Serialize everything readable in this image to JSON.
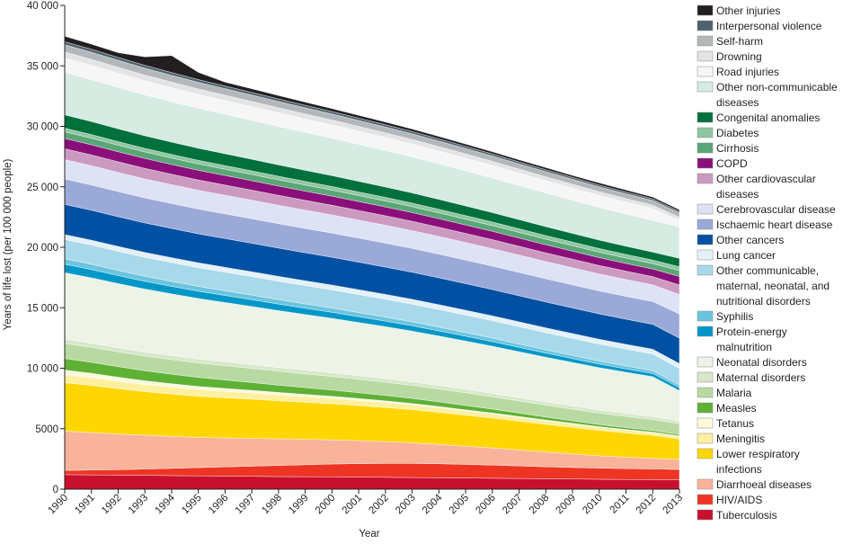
{
  "chart_data": {
    "type": "area",
    "stacked": true,
    "xlabel": "Year",
    "ylabel": "Years of life lost (per 100 000 people)",
    "ylim": [
      0,
      40000
    ],
    "yticks": [
      0,
      5000,
      10000,
      15000,
      20000,
      25000,
      30000,
      35000,
      40000
    ],
    "ytick_labels": [
      "0",
      "5000",
      "10 000",
      "15 000",
      "20 000",
      "25 000",
      "30 000",
      "35 000",
      "40 000"
    ],
    "x": [
      "1990",
      "1991",
      "1992",
      "1993",
      "1994",
      "1995",
      "1996",
      "1997",
      "1998",
      "1999",
      "2000",
      "2001",
      "2002",
      "2003",
      "2004",
      "2005",
      "2006",
      "2007",
      "2008",
      "2009",
      "2010",
      "2011",
      "2012",
      "2013"
    ],
    "grid": false,
    "legend_position": "right",
    "series": [
      {
        "name": "Tuberculosis",
        "color": "#c8102e",
        "values": [
          1200,
          1180,
          1160,
          1140,
          1120,
          1100,
          1080,
          1060,
          1040,
          1030,
          1020,
          1000,
          980,
          960,
          940,
          920,
          900,
          880,
          860,
          840,
          820,
          800,
          790,
          780
        ]
      },
      {
        "name": "HIV/AIDS",
        "color": "#ee3524",
        "values": [
          350,
          400,
          450,
          520,
          600,
          680,
          760,
          840,
          920,
          990,
          1060,
          1110,
          1150,
          1170,
          1160,
          1130,
          1090,
          1040,
          990,
          950,
          920,
          900,
          880,
          850
        ]
      },
      {
        "name": "Diarrhoeal diseases",
        "color": "#f9b39a",
        "values": [
          3250,
          3100,
          2950,
          2800,
          2650,
          2500,
          2400,
          2300,
          2200,
          2100,
          2000,
          1900,
          1800,
          1700,
          1600,
          1500,
          1420,
          1320,
          1220,
          1120,
          1020,
          950,
          880,
          820
        ]
      },
      {
        "name": "Lower respiratory infections",
        "color": "#ffd600",
        "values": [
          4000,
          3900,
          3750,
          3600,
          3500,
          3400,
          3320,
          3240,
          3150,
          3060,
          2980,
          2900,
          2820,
          2740,
          2650,
          2560,
          2470,
          2380,
          2290,
          2200,
          2100,
          2000,
          1900,
          1700
        ]
      },
      {
        "name": "Meningitis",
        "color": "#fff0a0",
        "values": [
          650,
          630,
          610,
          590,
          570,
          550,
          530,
          510,
          490,
          470,
          450,
          430,
          410,
          390,
          370,
          350,
          330,
          310,
          290,
          270,
          250,
          230,
          220,
          210
        ]
      },
      {
        "name": "Tetanus",
        "color": "#fff9dc",
        "values": [
          400,
          370,
          340,
          310,
          280,
          260,
          240,
          220,
          200,
          185,
          170,
          155,
          140,
          125,
          110,
          100,
          90,
          80,
          70,
          62,
          55,
          50,
          45,
          40
        ]
      },
      {
        "name": "Measles",
        "color": "#5eb135",
        "values": [
          950,
          910,
          870,
          830,
          790,
          750,
          700,
          650,
          600,
          560,
          520,
          480,
          450,
          420,
          390,
          360,
          320,
          280,
          240,
          210,
          180,
          160,
          140,
          120
        ]
      },
      {
        "name": "Malaria",
        "color": "#b9d9a3",
        "values": [
          1250,
          1240,
          1230,
          1220,
          1210,
          1200,
          1185,
          1170,
          1155,
          1140,
          1125,
          1110,
          1095,
          1080,
          1065,
          1050,
          1030,
          1010,
          990,
          970,
          950,
          930,
          910,
          890
        ]
      },
      {
        "name": "Maternal disorders",
        "color": "#d6e8c9",
        "values": [
          350,
          345,
          340,
          335,
          330,
          325,
          320,
          315,
          310,
          305,
          300,
          295,
          290,
          285,
          280,
          275,
          270,
          265,
          260,
          255,
          250,
          245,
          240,
          235
        ]
      },
      {
        "name": "Neonatal disorders",
        "color": "#edf3e6",
        "values": [
          5500,
          5400,
          5300,
          5200,
          5100,
          5000,
          4900,
          4800,
          4700,
          4600,
          4500,
          4400,
          4300,
          4200,
          4100,
          4000,
          3900,
          3800,
          3700,
          3600,
          3500,
          3400,
          3300,
          2500
        ]
      },
      {
        "name": "Protein-energy malnutrition",
        "color": "#0097c8",
        "values": [
          700,
          680,
          660,
          640,
          620,
          600,
          580,
          560,
          540,
          520,
          500,
          480,
          460,
          440,
          420,
          400,
          380,
          360,
          340,
          320,
          300,
          280,
          260,
          250
        ]
      },
      {
        "name": "Syphilis",
        "color": "#6bc4df",
        "values": [
          450,
          440,
          430,
          420,
          410,
          400,
          390,
          380,
          370,
          360,
          350,
          340,
          330,
          320,
          310,
          300,
          290,
          280,
          270,
          260,
          250,
          240,
          230,
          220
        ]
      },
      {
        "name": "Other communicable, maternal, neonatal, and nutritional disorders",
        "color": "#a8d9ea",
        "values": [
          1600,
          1590,
          1580,
          1570,
          1560,
          1550,
          1540,
          1530,
          1520,
          1510,
          1500,
          1490,
          1480,
          1470,
          1460,
          1450,
          1440,
          1430,
          1420,
          1410,
          1400,
          1390,
          1380,
          1370
        ]
      },
      {
        "name": "Lung cancer",
        "color": "#e4f1f8",
        "values": [
          400,
          400,
          400,
          400,
          400,
          400,
          400,
          400,
          400,
          400,
          400,
          400,
          400,
          400,
          400,
          400,
          400,
          400,
          400,
          400,
          400,
          400,
          400,
          400
        ]
      },
      {
        "name": "Other cancers",
        "color": "#0051a3",
        "values": [
          2500,
          2480,
          2460,
          2440,
          2420,
          2400,
          2380,
          2360,
          2340,
          2320,
          2300,
          2280,
          2260,
          2240,
          2220,
          2200,
          2180,
          2160,
          2140,
          2120,
          2100,
          2080,
          2060,
          2100
        ]
      },
      {
        "name": "Ischaemic heart disease",
        "color": "#9aa9d8",
        "values": [
          2100,
          2090,
          2080,
          2070,
          2060,
          2050,
          2040,
          2030,
          2020,
          2010,
          2000,
          1990,
          1980,
          1970,
          1960,
          1950,
          1940,
          1930,
          1920,
          1910,
          1900,
          1890,
          1880,
          2000
        ]
      },
      {
        "name": "Cerebrovascular disease",
        "color": "#dde2f4",
        "values": [
          1600,
          1590,
          1580,
          1570,
          1560,
          1550,
          1540,
          1530,
          1520,
          1510,
          1500,
          1490,
          1480,
          1470,
          1460,
          1450,
          1440,
          1430,
          1420,
          1410,
          1400,
          1390,
          1380,
          1600
        ]
      },
      {
        "name": "Other cardiovascular diseases",
        "color": "#cc99c0",
        "values": [
          900,
          890,
          880,
          870,
          860,
          850,
          840,
          830,
          820,
          810,
          800,
          790,
          780,
          770,
          760,
          750,
          740,
          730,
          720,
          710,
          700,
          690,
          680,
          800
        ]
      },
      {
        "name": "COPD",
        "color": "#8b0f7a",
        "values": [
          850,
          840,
          830,
          820,
          810,
          800,
          790,
          780,
          770,
          760,
          750,
          740,
          730,
          720,
          710,
          700,
          690,
          680,
          670,
          660,
          650,
          640,
          630,
          700
        ]
      },
      {
        "name": "Cirrhosis",
        "color": "#5aa677",
        "values": [
          550,
          545,
          540,
          535,
          530,
          525,
          520,
          515,
          510,
          505,
          500,
          495,
          490,
          485,
          480,
          475,
          470,
          465,
          460,
          455,
          450,
          445,
          440,
          500
        ]
      },
      {
        "name": "Diabetes",
        "color": "#8fc6a0",
        "values": [
          300,
          300,
          300,
          300,
          300,
          300,
          300,
          300,
          300,
          300,
          300,
          300,
          300,
          300,
          300,
          300,
          300,
          300,
          300,
          300,
          300,
          300,
          300,
          300
        ]
      },
      {
        "name": "Congenital anomalies",
        "color": "#00703c",
        "values": [
          1100,
          1080,
          1060,
          1040,
          1020,
          1000,
          980,
          960,
          940,
          920,
          900,
          880,
          860,
          840,
          820,
          800,
          780,
          760,
          740,
          720,
          700,
          680,
          660,
          700
        ]
      },
      {
        "name": "Other non-communicable diseases",
        "color": "#d6ebe2",
        "values": [
          3500,
          3460,
          3420,
          3380,
          3340,
          3300,
          3260,
          3220,
          3180,
          3140,
          3100,
          3060,
          3020,
          2980,
          2940,
          2900,
          2860,
          2820,
          2780,
          2740,
          2700,
          2660,
          2620,
          2600
        ]
      },
      {
        "name": "Road injuries",
        "color": "#f6f6f6",
        "values": [
          1200,
          1190,
          1180,
          1170,
          1160,
          1150,
          1140,
          1130,
          1120,
          1110,
          1100,
          1090,
          1080,
          1070,
          1060,
          1050,
          1040,
          1030,
          1020,
          1010,
          1000,
          990,
          980,
          550
        ]
      },
      {
        "name": "Drowning",
        "color": "#e3e4e5",
        "values": [
          500,
          490,
          480,
          470,
          460,
          450,
          440,
          430,
          420,
          410,
          400,
          390,
          380,
          370,
          360,
          350,
          340,
          330,
          320,
          310,
          300,
          290,
          280,
          250
        ]
      },
      {
        "name": "Self-harm",
        "color": "#b4b7ba",
        "values": [
          600,
          590,
          580,
          570,
          560,
          550,
          540,
          530,
          520,
          510,
          500,
          490,
          480,
          470,
          460,
          450,
          440,
          430,
          420,
          410,
          400,
          390,
          380,
          350
        ]
      },
      {
        "name": "Interpersonal violence",
        "color": "#4d636f",
        "values": [
          250,
          245,
          240,
          235,
          230,
          225,
          220,
          215,
          210,
          205,
          200,
          195,
          190,
          185,
          180,
          175,
          170,
          165,
          160,
          155,
          150,
          145,
          140,
          130
        ]
      },
      {
        "name": "Other injuries",
        "color": "#231f20",
        "values": [
          450,
          420,
          390,
          700,
          1400,
          600,
          320,
          300,
          280,
          260,
          240,
          230,
          220,
          210,
          200,
          190,
          180,
          170,
          180,
          160,
          180,
          170,
          150,
          140
        ]
      }
    ],
    "legend": [
      {
        "label": "Other injuries",
        "color": "#231f20"
      },
      {
        "label": "Interpersonal violence",
        "color": "#4d636f"
      },
      {
        "label": "Self-harm",
        "color": "#b4b7ba"
      },
      {
        "label": "Drowning",
        "color": "#e3e4e5"
      },
      {
        "label": "Road injuries",
        "color": "#f6f6f6"
      },
      {
        "label": "Other non-communicable diseases",
        "color": "#d6ebe2"
      },
      {
        "label": "Congenital anomalies",
        "color": "#00703c"
      },
      {
        "label": "Diabetes",
        "color": "#8fc6a0"
      },
      {
        "label": "Cirrhosis",
        "color": "#5aa677"
      },
      {
        "label": "COPD",
        "color": "#8b0f7a"
      },
      {
        "label": "Other cardiovascular diseases",
        "color": "#cc99c0"
      },
      {
        "label": "Cerebrovascular disease",
        "color": "#dde2f4"
      },
      {
        "label": "Ischaemic heart disease",
        "color": "#9aa9d8"
      },
      {
        "label": "Other cancers",
        "color": "#0051a3"
      },
      {
        "label": "Lung cancer",
        "color": "#e4f1f8"
      },
      {
        "label": "Other communicable, maternal, neonatal, and nutritional disorders",
        "color": "#a8d9ea"
      },
      {
        "label": "Syphilis",
        "color": "#6bc4df"
      },
      {
        "label": "Protein-energy malnutrition",
        "color": "#0097c8"
      },
      {
        "label": "Neonatal disorders",
        "color": "#edf3e6"
      },
      {
        "label": "Maternal disorders",
        "color": "#d6e8c9"
      },
      {
        "label": "Malaria",
        "color": "#b9d9a3"
      },
      {
        "label": "Measles",
        "color": "#5eb135"
      },
      {
        "label": "Tetanus",
        "color": "#fff9dc"
      },
      {
        "label": "Meningitis",
        "color": "#fff0a0"
      },
      {
        "label": "Lower respiratory infections",
        "color": "#ffd600"
      },
      {
        "label": "Diarrhoeal diseases",
        "color": "#f9b39a"
      },
      {
        "label": "HIV/AIDS",
        "color": "#ee3524"
      },
      {
        "label": "Tuberculosis",
        "color": "#c8102e"
      }
    ]
  }
}
